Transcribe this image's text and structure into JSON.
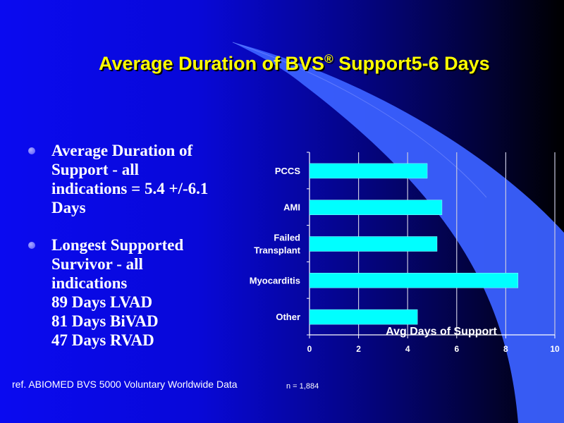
{
  "title": {
    "text": "Average Duration of BVS",
    "reg": "®",
    "rest": " Support5-6 Days"
  },
  "bullets": [
    {
      "lines": [
        "Average Duration of",
        "Support - all",
        "indications = 5.4 +/-6.1",
        "Days"
      ]
    },
    {
      "lines": [
        "Longest Supported",
        "Survivor - all",
        "indications",
        "89 Days LVAD",
        "81 Days BiVAD",
        "47 Days RVAD"
      ]
    }
  ],
  "reference": "ref. ABIOMED BVS 5000 Voluntary Worldwide Data",
  "sample_size": "n = 1,884",
  "colors": {
    "bar": "#00ffff",
    "title": "#ffff00",
    "swoosh": "#3a60ff"
  },
  "chart_data": {
    "type": "bar",
    "orientation": "horizontal",
    "categories": [
      "PCCS",
      "AMI",
      "Failed Transplant",
      "Myocarditis",
      "Other"
    ],
    "category_lines": [
      [
        "PCCS"
      ],
      [
        "AMI"
      ],
      [
        "Failed",
        "Transplant"
      ],
      [
        "Myocarditis"
      ],
      [
        "Other"
      ]
    ],
    "values": [
      4.8,
      5.4,
      5.2,
      8.5,
      4.4
    ],
    "xlabel": "Avg Days of Support",
    "xlim": [
      0,
      10
    ],
    "xticks": [
      "0",
      "2",
      "4",
      "6",
      "8",
      "10"
    ],
    "grid": true
  }
}
